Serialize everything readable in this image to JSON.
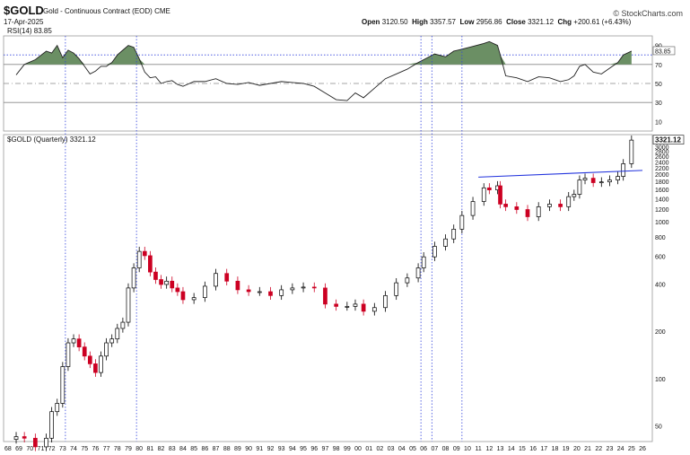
{
  "header": {
    "symbol": "$GOLD",
    "description": "Gold - Continuous Contract (EOD)",
    "exchange": "CME",
    "date": "17-Apr-2025",
    "watermark": "© StockCharts.com",
    "open_label": "Open",
    "open": "3120.50",
    "high_label": "High",
    "high": "3357.57",
    "low_label": "Low",
    "low": "2956.86",
    "close_label": "Close",
    "close": "3321.12",
    "chg_label": "Chg",
    "chg": "+200.61 (+6.43%)"
  },
  "colors": {
    "up": "#000000",
    "down": "#cc0022",
    "rsi_fill": "#6b8f64",
    "trendline": "#2233dd",
    "vline": "#3344dd"
  },
  "chart_data": [
    {
      "type": "line",
      "title": "RSI(14) 83.85",
      "indicator": "RSI(14)",
      "last_value_label": "83.85",
      "yticks": [
        10,
        30,
        50,
        70,
        90
      ],
      "ylim": [
        0,
        100
      ],
      "reference_levels": [
        30,
        50,
        70,
        80
      ],
      "x": [
        1968.75,
        1969.5,
        1970.5,
        1971.5,
        1972.0,
        1972.5,
        1973.0,
        1973.5,
        1974.0,
        1974.5,
        1975.0,
        1975.5,
        1976.0,
        1976.5,
        1977.0,
        1977.5,
        1978.0,
        1978.5,
        1979.0,
        1979.5,
        1980.0,
        1980.5,
        1981.0,
        1981.5,
        1982.0,
        1982.5,
        1983.0,
        1983.5,
        1984.0,
        1985.0,
        1986.0,
        1987.0,
        1988.0,
        1989.0,
        1990.0,
        1991.0,
        1992.0,
        1993.0,
        1994.0,
        1995.0,
        1996.0,
        1997.0,
        1998.0,
        1999.0,
        1999.75,
        2000.5,
        2001.5,
        2002.5,
        2003.5,
        2004.5,
        2005.5,
        2006.0,
        2007.0,
        2008.0,
        2008.75,
        2009.5,
        2010.5,
        2011.5,
        2012.0,
        2012.75,
        2013.0,
        2013.5,
        2014.5,
        2015.5,
        2016.5,
        2017.5,
        2018.5,
        2019.25,
        2019.75,
        2020.25,
        2020.75,
        2021.5,
        2022.25,
        2023.0,
        2023.75,
        2024.25,
        2025.0
      ],
      "values": [
        59,
        70,
        75,
        84,
        82,
        90,
        77,
        85,
        82,
        76,
        68,
        60,
        63,
        68,
        68,
        72,
        80,
        85,
        90,
        88,
        76,
        62,
        56,
        57,
        50,
        52,
        53,
        49,
        47,
        52,
        52,
        55,
        50,
        49,
        51,
        48,
        50,
        52,
        51,
        50,
        47,
        40,
        33,
        32,
        40,
        35,
        45,
        55,
        60,
        65,
        72,
        75,
        81,
        78,
        84,
        86,
        89,
        92,
        94,
        90,
        80,
        58,
        56,
        52,
        57,
        56,
        52,
        54,
        58,
        68,
        70,
        62,
        60,
        66,
        72,
        80,
        84
      ]
    },
    {
      "type": "candlestick",
      "title": "$GOLD (Quarterly) 3321.12",
      "series_label": "$GOLD (Quarterly)",
      "last_value_label": "3321.12",
      "y_scale": "log",
      "ylim": [
        40,
        3600
      ],
      "yticks": [
        50,
        100,
        200,
        400,
        600,
        800,
        1000,
        1200,
        1400,
        1600,
        1800,
        2000,
        2200,
        2400,
        2600,
        2800,
        3000
      ],
      "xticks": [
        "68",
        "69",
        "70",
        "71",
        "72",
        "73",
        "74",
        "75",
        "76",
        "77",
        "78",
        "79",
        "80",
        "81",
        "82",
        "83",
        "84",
        "85",
        "86",
        "87",
        "88",
        "89",
        "90",
        "91",
        "92",
        "93",
        "94",
        "95",
        "96",
        "97",
        "98",
        "99",
        "00",
        "01",
        "02",
        "03",
        "04",
        "05",
        "06",
        "07",
        "08",
        "09",
        "10",
        "11",
        "12",
        "13",
        "14",
        "15",
        "16",
        "17",
        "18",
        "19",
        "20",
        "21",
        "22",
        "23",
        "24",
        "25",
        "26"
      ],
      "trendline": {
        "x": [
          2011.0,
          2026.0
        ],
        "y": [
          1930,
          2130
        ]
      },
      "vertical_markers": [
        1973.25,
        1979.75,
        2005.75,
        2006.75,
        2009.5
      ],
      "x": [
        1968.75,
        1969.5,
        1970.5,
        1971.5,
        1972.0,
        1972.5,
        1973.0,
        1973.5,
        1974.0,
        1974.5,
        1975.0,
        1975.5,
        1976.0,
        1976.5,
        1977.0,
        1977.5,
        1978.0,
        1978.5,
        1979.0,
        1979.5,
        1980.0,
        1980.5,
        1981.0,
        1981.5,
        1982.0,
        1982.5,
        1983.0,
        1983.5,
        1984.0,
        1985.0,
        1986.0,
        1987.0,
        1988.0,
        1989.0,
        1990.0,
        1991.0,
        1992.0,
        1993.0,
        1994.0,
        1995.0,
        1996.0,
        1997.0,
        1998.0,
        1999.0,
        1999.75,
        2000.5,
        2001.5,
        2002.5,
        2003.5,
        2004.5,
        2005.5,
        2006.0,
        2007.0,
        2008.0,
        2008.75,
        2009.5,
        2010.5,
        2011.5,
        2012.0,
        2012.75,
        2013.0,
        2013.5,
        2014.5,
        2015.5,
        2016.5,
        2017.5,
        2018.5,
        2019.25,
        2019.75,
        2020.25,
        2020.75,
        2021.5,
        2022.25,
        2023.0,
        2023.75,
        2024.25,
        2025.0
      ],
      "values": [
        43,
        42,
        37,
        42,
        62,
        70,
        120,
        170,
        180,
        160,
        140,
        125,
        110,
        140,
        170,
        180,
        210,
        230,
        380,
        510,
        650,
        610,
        480,
        430,
        400,
        420,
        380,
        360,
        320,
        330,
        390,
        470,
        420,
        370,
        360,
        360,
        340,
        370,
        380,
        385,
        380,
        300,
        290,
        290,
        300,
        270,
        285,
        340,
        410,
        440,
        510,
        600,
        700,
        780,
        900,
        1100,
        1350,
        1650,
        1600,
        1700,
        1300,
        1250,
        1200,
        1080,
        1250,
        1300,
        1250,
        1450,
        1500,
        1850,
        1900,
        1780,
        1800,
        1850,
        1950,
        2350,
        3321
      ]
    }
  ]
}
